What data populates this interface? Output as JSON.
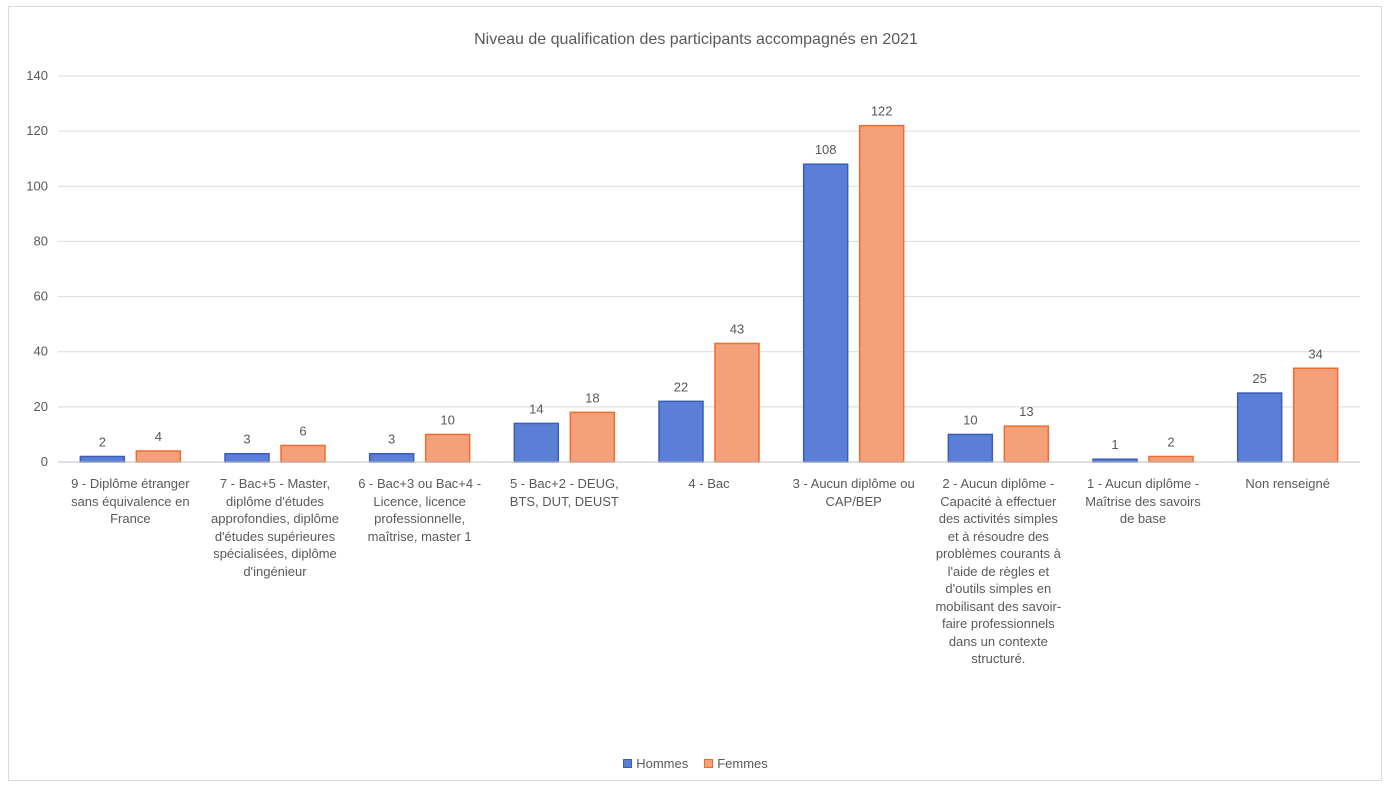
{
  "chart_data": {
    "type": "bar",
    "title": "Niveau de qualification des participants accompagnés en 2021",
    "xlabel": "",
    "ylabel": "",
    "ylim": [
      0,
      140
    ],
    "yticks": [
      0,
      20,
      40,
      60,
      80,
      100,
      120,
      140
    ],
    "grid": true,
    "legend_position": "bottom",
    "categories": [
      "9 - Diplôme étranger sans équivalence en France",
      "7 - Bac+5 - Master, diplôme d'études approfondies, diplôme d'études supérieures spécialisées, diplôme d'ingénieur",
      "6 - Bac+3 ou Bac+4 - Licence, licence professionnelle, maîtrise, master 1",
      "5 - Bac+2 - DEUG, BTS, DUT, DEUST",
      "4 - Bac",
      "3 - Aucun diplôme ou CAP/BEP",
      "2 - Aucun diplôme - Capacité à effectuer des activités simples et à résoudre des problèmes courants à l'aide de règles et d'outils simples en mobilisant des savoir-faire professionnels dans un contexte structuré.",
      "1 - Aucun diplôme - Maîtrise des savoirs de base",
      "Non renseigné"
    ],
    "series": [
      {
        "name": "Hommes",
        "color": "#5B7FD6",
        "stroke": "#3A5DB8",
        "values": [
          2,
          3,
          3,
          14,
          22,
          108,
          10,
          1,
          25
        ]
      },
      {
        "name": "Femmes",
        "color": "#F4A07A",
        "stroke": "#ED6C2E",
        "values": [
          4,
          6,
          10,
          18,
          43,
          122,
          13,
          2,
          34
        ]
      }
    ]
  }
}
